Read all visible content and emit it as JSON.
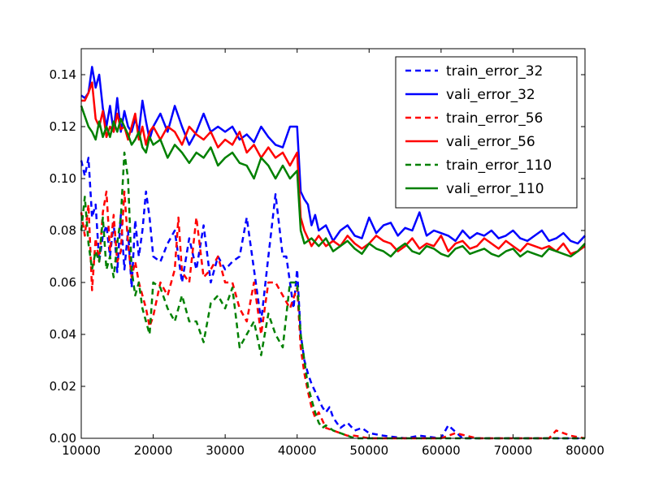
{
  "chart_data": {
    "type": "line",
    "title": "",
    "xlabel": "",
    "ylabel": "",
    "xlim": [
      10000,
      80000
    ],
    "ylim": [
      0.0,
      0.15
    ],
    "grid": false,
    "legend_placement": "top-right",
    "x_ticks": [
      "10000",
      "20000",
      "30000",
      "40000",
      "50000",
      "60000",
      "70000",
      "80000"
    ],
    "y_ticks": [
      "0.00",
      "0.02",
      "0.04",
      "0.06",
      "0.08",
      "0.10",
      "0.12",
      "0.14"
    ],
    "series": [
      {
        "name": "train_error_32",
        "color": "#0000ff",
        "style": "dashed",
        "x": [
          10000,
          10500,
          11000,
          11500,
          12000,
          12500,
          13000,
          13500,
          14000,
          14500,
          15000,
          15500,
          16000,
          16500,
          17000,
          17500,
          18000,
          18500,
          19000,
          19500,
          20000,
          21000,
          22000,
          23000,
          24000,
          25000,
          26000,
          27000,
          28000,
          29000,
          30000,
          31000,
          32000,
          33000,
          34000,
          35000,
          36000,
          37000,
          37500,
          38000,
          38500,
          39000,
          39500,
          40000,
          40500,
          41000,
          41500,
          42000,
          42500,
          43000,
          43500,
          44000,
          44500,
          45000,
          45500,
          46000,
          47000,
          48000,
          49000,
          50000,
          52000,
          55000,
          57000,
          60000,
          61000,
          63000,
          66000,
          70000,
          75000,
          80000
        ],
        "values": [
          0.107,
          0.101,
          0.108,
          0.085,
          0.09,
          0.068,
          0.078,
          0.082,
          0.07,
          0.083,
          0.064,
          0.086,
          0.065,
          0.08,
          0.058,
          0.084,
          0.07,
          0.08,
          0.095,
          0.085,
          0.07,
          0.068,
          0.075,
          0.08,
          0.06,
          0.077,
          0.065,
          0.082,
          0.06,
          0.07,
          0.065,
          0.068,
          0.07,
          0.085,
          0.065,
          0.045,
          0.07,
          0.094,
          0.082,
          0.07,
          0.07,
          0.06,
          0.05,
          0.065,
          0.04,
          0.03,
          0.025,
          0.021,
          0.018,
          0.015,
          0.012,
          0.01,
          0.012,
          0.008,
          0.006,
          0.004,
          0.006,
          0.003,
          0.004,
          0.002,
          0.001,
          0.0,
          0.001,
          0.0,
          0.005,
          0.0,
          0.0,
          0.0,
          0.0,
          0.0
        ]
      },
      {
        "name": "vali_error_32",
        "color": "#0000ff",
        "style": "solid",
        "x": [
          10000,
          10500,
          11000,
          11500,
          12000,
          12500,
          13000,
          13500,
          14000,
          14500,
          15000,
          15500,
          16000,
          16500,
          17000,
          17500,
          18000,
          18500,
          19000,
          19500,
          20000,
          21000,
          22000,
          23000,
          24000,
          25000,
          26000,
          27000,
          28000,
          29000,
          30000,
          31000,
          32000,
          33000,
          34000,
          35000,
          36000,
          37000,
          38000,
          39000,
          40000,
          40500,
          41000,
          41500,
          42000,
          42500,
          43000,
          44000,
          45000,
          46000,
          47000,
          48000,
          49000,
          50000,
          51000,
          52000,
          53000,
          54000,
          55000,
          56000,
          57000,
          58000,
          59000,
          60000,
          61000,
          62000,
          63000,
          64000,
          65000,
          66000,
          67000,
          68000,
          69000,
          70000,
          71000,
          72000,
          73000,
          74000,
          75000,
          76000,
          77000,
          78000,
          79000,
          80000
        ],
        "values": [
          0.132,
          0.131,
          0.133,
          0.143,
          0.135,
          0.14,
          0.127,
          0.12,
          0.128,
          0.118,
          0.131,
          0.118,
          0.126,
          0.12,
          0.118,
          0.123,
          0.118,
          0.13,
          0.122,
          0.115,
          0.12,
          0.125,
          0.118,
          0.128,
          0.12,
          0.113,
          0.118,
          0.125,
          0.118,
          0.12,
          0.118,
          0.12,
          0.115,
          0.117,
          0.114,
          0.12,
          0.116,
          0.113,
          0.112,
          0.12,
          0.12,
          0.095,
          0.092,
          0.09,
          0.082,
          0.086,
          0.08,
          0.082,
          0.076,
          0.08,
          0.082,
          0.078,
          0.077,
          0.085,
          0.079,
          0.082,
          0.083,
          0.078,
          0.081,
          0.08,
          0.087,
          0.078,
          0.08,
          0.079,
          0.078,
          0.076,
          0.08,
          0.077,
          0.079,
          0.078,
          0.08,
          0.077,
          0.078,
          0.08,
          0.077,
          0.076,
          0.078,
          0.08,
          0.076,
          0.077,
          0.079,
          0.076,
          0.075,
          0.078
        ]
      },
      {
        "name": "train_error_56",
        "color": "#ff0000",
        "style": "dashed",
        "x": [
          10000,
          10500,
          11000,
          11500,
          12000,
          12500,
          13000,
          13500,
          14000,
          14500,
          15000,
          15500,
          16000,
          16500,
          17000,
          17500,
          18000,
          18500,
          19000,
          19500,
          20000,
          21000,
          22000,
          23000,
          23500,
          24000,
          25000,
          26000,
          27000,
          28000,
          29000,
          30000,
          31000,
          32000,
          33000,
          34000,
          35000,
          36000,
          37000,
          38000,
          39000,
          40000,
          40500,
          41000,
          41500,
          42000,
          42500,
          43000,
          43500,
          44000,
          45000,
          46000,
          47000,
          48000,
          50000,
          52000,
          55000,
          60000,
          62000,
          65000,
          70000,
          75000,
          76000,
          78000,
          80000
        ],
        "values": [
          0.087,
          0.078,
          0.09,
          0.057,
          0.077,
          0.068,
          0.087,
          0.095,
          0.072,
          0.086,
          0.068,
          0.072,
          0.095,
          0.075,
          0.062,
          0.068,
          0.06,
          0.055,
          0.05,
          0.043,
          0.047,
          0.06,
          0.055,
          0.065,
          0.085,
          0.064,
          0.06,
          0.085,
          0.062,
          0.065,
          0.07,
          0.06,
          0.06,
          0.05,
          0.045,
          0.06,
          0.04,
          0.06,
          0.06,
          0.055,
          0.05,
          0.058,
          0.035,
          0.025,
          0.018,
          0.012,
          0.008,
          0.01,
          0.007,
          0.004,
          0.003,
          0.002,
          0.001,
          0.001,
          0.0,
          0.0,
          0.0,
          0.0,
          0.002,
          0.0,
          0.0,
          0.0,
          0.003,
          0.001,
          0.0
        ]
      },
      {
        "name": "vali_error_56",
        "color": "#ff0000",
        "style": "solid",
        "x": [
          10000,
          10500,
          11000,
          11500,
          12000,
          12500,
          13000,
          13500,
          14000,
          14500,
          15000,
          15500,
          16000,
          16500,
          17000,
          17500,
          18000,
          18500,
          19000,
          19500,
          20000,
          21000,
          22000,
          23000,
          24000,
          25000,
          26000,
          27000,
          28000,
          29000,
          30000,
          31000,
          32000,
          33000,
          34000,
          35000,
          36000,
          37000,
          38000,
          39000,
          40000,
          40500,
          41000,
          42000,
          43000,
          44000,
          45000,
          46000,
          47000,
          48000,
          49000,
          50000,
          51000,
          52000,
          53000,
          54000,
          55000,
          56000,
          57000,
          58000,
          59000,
          60000,
          61000,
          62000,
          63000,
          64000,
          65000,
          66000,
          67000,
          68000,
          69000,
          70000,
          71000,
          72000,
          73000,
          74000,
          75000,
          76000,
          77000,
          78000,
          79000,
          80000
        ],
        "values": [
          0.13,
          0.13,
          0.133,
          0.137,
          0.123,
          0.12,
          0.126,
          0.116,
          0.12,
          0.118,
          0.125,
          0.119,
          0.12,
          0.115,
          0.12,
          0.125,
          0.115,
          0.12,
          0.113,
          0.118,
          0.12,
          0.115,
          0.12,
          0.118,
          0.113,
          0.12,
          0.117,
          0.115,
          0.118,
          0.112,
          0.115,
          0.113,
          0.118,
          0.11,
          0.113,
          0.108,
          0.112,
          0.108,
          0.11,
          0.105,
          0.11,
          0.085,
          0.08,
          0.074,
          0.078,
          0.074,
          0.076,
          0.074,
          0.078,
          0.075,
          0.073,
          0.075,
          0.078,
          0.076,
          0.075,
          0.072,
          0.074,
          0.077,
          0.073,
          0.075,
          0.074,
          0.078,
          0.072,
          0.075,
          0.076,
          0.073,
          0.074,
          0.077,
          0.075,
          0.073,
          0.076,
          0.074,
          0.072,
          0.075,
          0.074,
          0.073,
          0.074,
          0.072,
          0.075,
          0.071,
          0.072,
          0.074
        ]
      },
      {
        "name": "train_error_110",
        "color": "#008000",
        "style": "dashed",
        "x": [
          10000,
          10500,
          11000,
          11500,
          12000,
          12500,
          13000,
          13500,
          14000,
          14500,
          15000,
          15500,
          16000,
          16500,
          17000,
          17500,
          18000,
          18500,
          19000,
          19500,
          20000,
          21000,
          22000,
          23000,
          24000,
          25000,
          26000,
          27000,
          28000,
          29000,
          30000,
          31000,
          32000,
          33000,
          34000,
          35000,
          36000,
          37000,
          38000,
          39000,
          40000,
          40500,
          41000,
          41500,
          42000,
          42500,
          43000,
          43500,
          44000,
          45000,
          46000,
          47000,
          48000,
          50000,
          55000,
          60000,
          70000,
          80000
        ],
        "values": [
          0.08,
          0.093,
          0.075,
          0.065,
          0.072,
          0.068,
          0.085,
          0.065,
          0.07,
          0.062,
          0.075,
          0.085,
          0.11,
          0.1,
          0.065,
          0.055,
          0.06,
          0.05,
          0.045,
          0.04,
          0.06,
          0.058,
          0.05,
          0.045,
          0.055,
          0.045,
          0.045,
          0.037,
          0.052,
          0.055,
          0.05,
          0.058,
          0.035,
          0.04,
          0.045,
          0.032,
          0.048,
          0.04,
          0.035,
          0.06,
          0.06,
          0.04,
          0.03,
          0.02,
          0.015,
          0.01,
          0.006,
          0.004,
          0.005,
          0.003,
          0.002,
          0.001,
          0.0,
          0.0,
          0.0,
          0.0,
          0.0,
          0.0
        ]
      },
      {
        "name": "vali_error_110",
        "color": "#008000",
        "style": "solid",
        "x": [
          10000,
          10500,
          11000,
          11500,
          12000,
          12500,
          13000,
          13500,
          14000,
          14500,
          15000,
          15500,
          16000,
          16500,
          17000,
          17500,
          18000,
          18500,
          19000,
          19500,
          20000,
          21000,
          22000,
          23000,
          24000,
          25000,
          26000,
          27000,
          28000,
          29000,
          30000,
          31000,
          32000,
          33000,
          34000,
          35000,
          36000,
          37000,
          38000,
          39000,
          40000,
          40500,
          41000,
          42000,
          43000,
          44000,
          45000,
          46000,
          47000,
          48000,
          49000,
          50000,
          51000,
          52000,
          53000,
          54000,
          55000,
          56000,
          57000,
          58000,
          59000,
          60000,
          61000,
          62000,
          63000,
          64000,
          65000,
          66000,
          67000,
          68000,
          69000,
          70000,
          71000,
          72000,
          73000,
          74000,
          75000,
          76000,
          77000,
          78000,
          79000,
          80000
        ],
        "values": [
          0.128,
          0.124,
          0.12,
          0.118,
          0.115,
          0.122,
          0.116,
          0.12,
          0.116,
          0.122,
          0.118,
          0.123,
          0.12,
          0.117,
          0.113,
          0.115,
          0.118,
          0.112,
          0.11,
          0.116,
          0.113,
          0.115,
          0.108,
          0.113,
          0.11,
          0.106,
          0.11,
          0.108,
          0.112,
          0.105,
          0.108,
          0.11,
          0.106,
          0.105,
          0.1,
          0.108,
          0.105,
          0.1,
          0.105,
          0.1,
          0.103,
          0.08,
          0.075,
          0.077,
          0.074,
          0.077,
          0.072,
          0.074,
          0.076,
          0.073,
          0.071,
          0.075,
          0.073,
          0.072,
          0.07,
          0.073,
          0.075,
          0.072,
          0.071,
          0.074,
          0.073,
          0.071,
          0.07,
          0.073,
          0.074,
          0.071,
          0.072,
          0.073,
          0.071,
          0.07,
          0.072,
          0.073,
          0.07,
          0.072,
          0.071,
          0.07,
          0.073,
          0.072,
          0.071,
          0.07,
          0.072,
          0.075
        ]
      }
    ]
  }
}
